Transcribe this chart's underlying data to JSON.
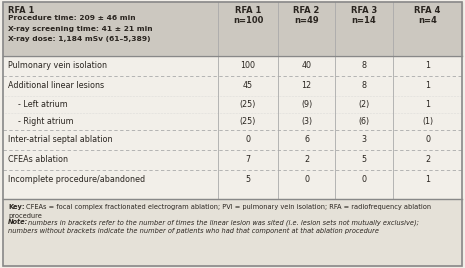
{
  "header_left_title": "RFA 1",
  "header_left_lines": [
    "Procedure time: 209 ± 46 min",
    "X-ray screening time: 41 ± 21 min",
    "X-ray dose: 1,184 mSv (61–5,389)"
  ],
  "col_headers": [
    [
      "RFA 1",
      "n=100"
    ],
    [
      "RFA 2",
      "n=49"
    ],
    [
      "RFA 3",
      "n=14"
    ],
    [
      "RFA 4",
      "n=4"
    ]
  ],
  "rows": [
    {
      "label": "Pulmonary vein isolation",
      "values": [
        "100",
        "40",
        "8",
        "1"
      ],
      "indent": false
    },
    {
      "label": "Additional linear lesions",
      "values": [
        "45",
        "12",
        "8",
        "1"
      ],
      "indent": false
    },
    {
      "label": "- Left atrium",
      "values": [
        "(25)",
        "(9)",
        "(2)",
        "1"
      ],
      "indent": true
    },
    {
      "label": "- Right atrium",
      "values": [
        "(25)",
        "(3)",
        "(6)",
        "(1)"
      ],
      "indent": true
    },
    {
      "label": "Inter-atrial septal ablation",
      "values": [
        "0",
        "6",
        "3",
        "0"
      ],
      "indent": false
    },
    {
      "label": "CFEAs ablation",
      "values": [
        "7",
        "2",
        "5",
        "2"
      ],
      "indent": false
    },
    {
      "label": "Incomplete procedure/abandoned",
      "values": [
        "5",
        "0",
        "0",
        "1"
      ],
      "indent": false
    }
  ],
  "key_line1": "Key: CFEAs = focal complex fractionated electrogram ablation; PVI = pulmonary vein isolation; RFA = radiofrequency ablation",
  "key_line2": "procedure",
  "note_line1": "Note: numbers in brackets refer to the number of times the linear lesion was sited (i.e. lesion sets not mutually exclusive);",
  "note_line2": "numbers without brackets indicate the number of patients who had that component at that ablation procedure",
  "bg_header": "#ccc8c0",
  "bg_body": "#f2efe9",
  "bg_note": "#e5e1d8",
  "line_color": "#aaaaaa",
  "border_color": "#888888",
  "text_color": "#2a2520"
}
